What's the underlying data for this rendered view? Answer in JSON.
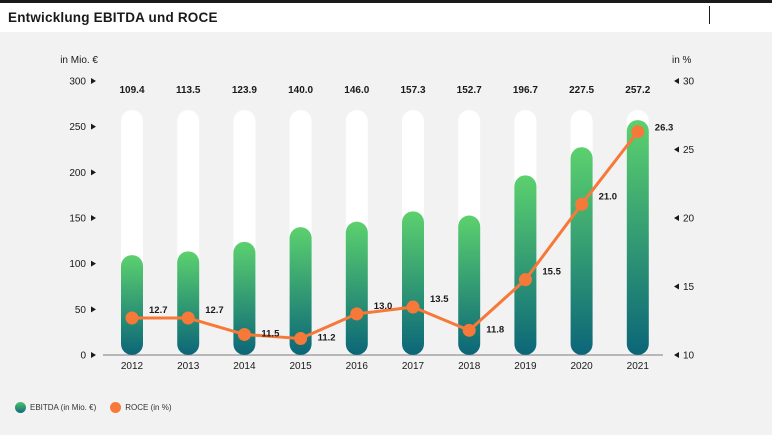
{
  "title": "Entwicklung EBITDA und ROCE",
  "colors": {
    "bar_top": "#5cd16e",
    "bar_bottom": "#0b6678",
    "bar_bg": "#ffffff",
    "line": "#f6793a",
    "text": "#1a1a1a",
    "background": "#f2f2f2"
  },
  "chart_data": {
    "type": "bar+line",
    "title": "Entwicklung EBITDA und ROCE",
    "categories": [
      "2012",
      "2013",
      "2014",
      "2015",
      "2016",
      "2017",
      "2018",
      "2019",
      "2020",
      "2021"
    ],
    "series": [
      {
        "name": "EBITDA (in Mio. €)",
        "type": "bar",
        "axis": "left",
        "values": [
          109.4,
          113.5,
          123.9,
          140.0,
          146.0,
          157.3,
          152.7,
          196.7,
          227.5,
          257.2
        ],
        "labels": [
          "109.4",
          "113.5",
          "123.9",
          "140.0",
          "146.0",
          "157.3",
          "152.7",
          "196.7",
          "227.5",
          "257.2"
        ]
      },
      {
        "name": "ROCE (in %)",
        "type": "line",
        "axis": "right",
        "values": [
          12.7,
          12.7,
          11.5,
          11.2,
          13.0,
          13.5,
          11.8,
          15.5,
          21.0,
          26.3
        ],
        "labels": [
          "12.7",
          "12.7",
          "11.5",
          "11.2",
          "13.0",
          "13.5",
          "11.8",
          "15.5",
          "21.0",
          "26.3"
        ]
      }
    ],
    "left_axis": {
      "label": "in Mio. €",
      "ylim": [
        0,
        300
      ],
      "ticks": [
        0,
        50,
        100,
        150,
        200,
        250,
        300
      ],
      "tick_labels": [
        "0",
        "50",
        "100",
        "150",
        "200",
        "250",
        "300"
      ]
    },
    "right_axis": {
      "label": "in %",
      "ylim": [
        10,
        30
      ],
      "ticks": [
        10,
        15,
        20,
        25,
        30
      ],
      "tick_labels": [
        "10",
        "15",
        "20",
        "25",
        "30"
      ]
    },
    "grid": false,
    "legend": "bottom-left"
  },
  "legend": {
    "ebitda": "EBITDA (in Mio. €)",
    "roce": "ROCE (in %)"
  }
}
